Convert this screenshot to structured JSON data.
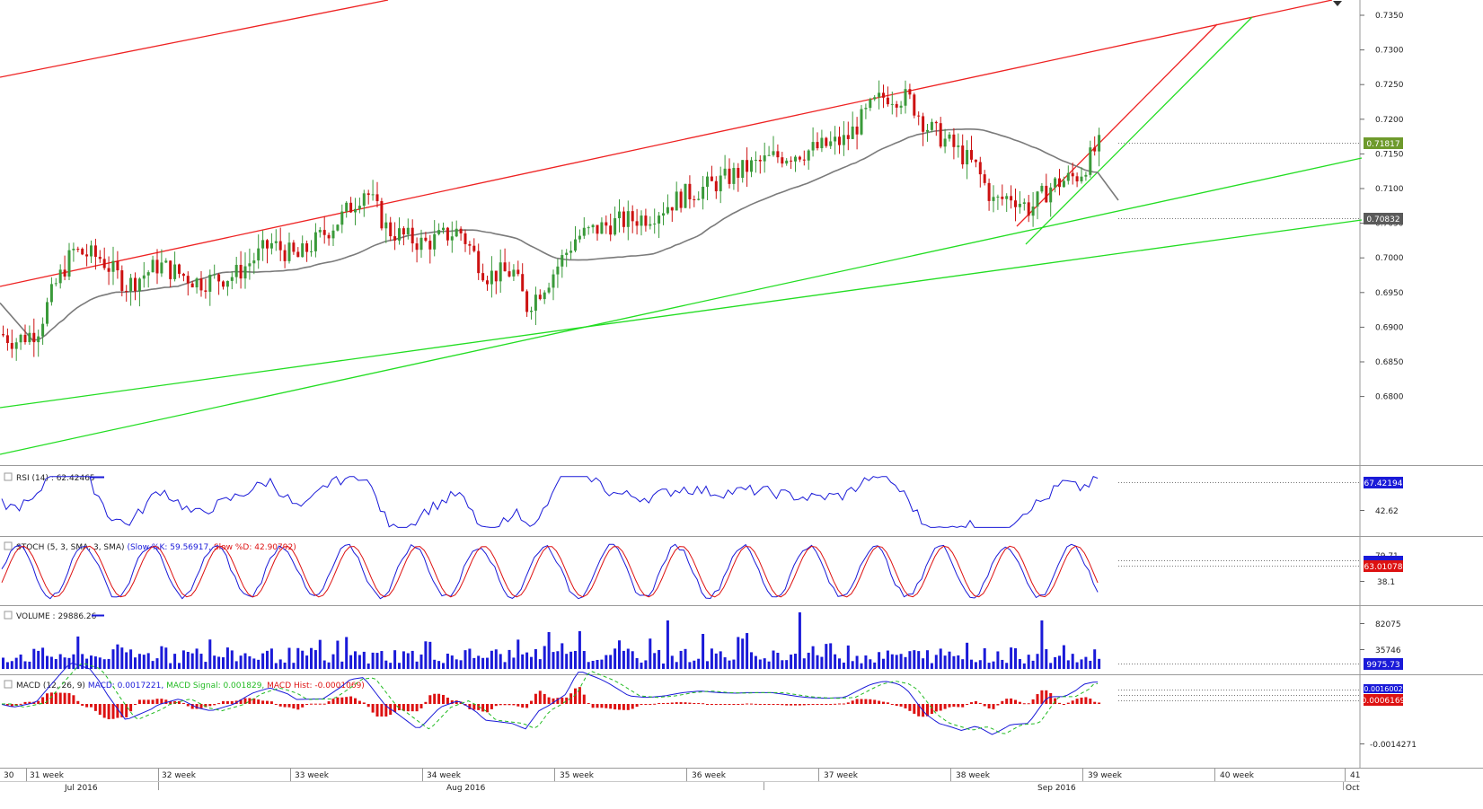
{
  "chart_data": {
    "type": "candlestick",
    "main": {
      "price_ticks": [
        "0.7350",
        "0.7300",
        "0.7250",
        "0.7200",
        "0.7150",
        "0.7100",
        "0.7050",
        "0.7000",
        "0.6950",
        "0.6900",
        "0.6850",
        "0.6800"
      ],
      "price_min": 0.677,
      "price_max": 0.737,
      "last_price": "0.71817",
      "ma_value": "0.70832",
      "ohlc_start": {
        "open": 0.689,
        "close": 0.688
      },
      "colors": {
        "up": "#3a9a3a",
        "down": "#cc1111",
        "ma": "#7a7a7a",
        "channel": "#ee2222",
        "trend": "#22dd22"
      }
    },
    "rsi": {
      "legend": "RSI (14) : 62.42465",
      "last": "67.42194",
      "tick": "42.62"
    },
    "stoch": {
      "legend_prefix": "STOCH (5, 3, SMA, 3, SMA)",
      "legend_k": "(Slow %K: 59.56917,",
      "legend_d": "Slow %D: 42.90792)",
      "tick_high": "79.71",
      "tick_low": "38.1",
      "last_k": "63.01078",
      "last_d": "63.01078"
    },
    "volume": {
      "legend": "VOLUME : 29886.26",
      "ticks": [
        "82075",
        "35746"
      ],
      "last": "9975.73"
    },
    "macd": {
      "legend_prefix": "MACD (12, 26, 9)",
      "legend_macd": "MACD: 0.0017221,",
      "legend_signal": "MACD Signal: 0.001829,",
      "legend_hist": "MACD Hist: -0.0001069)",
      "tick": "-0.0014271",
      "last_macd": "0.0016002",
      "last_hist": "0.0006169"
    },
    "x_axis": {
      "weeks": [
        {
          "label": "30"
        },
        {
          "label": "31 week"
        },
        {
          "label": "32 week"
        },
        {
          "label": "33 week"
        },
        {
          "label": "34 week"
        },
        {
          "label": "35 week"
        },
        {
          "label": "36 week"
        },
        {
          "label": "37 week"
        },
        {
          "label": "38 week"
        },
        {
          "label": "39 week"
        },
        {
          "label": "40 week"
        },
        {
          "label": "41"
        }
      ],
      "months": [
        {
          "label": "Jul 2016"
        },
        {
          "label": "Aug 2016"
        },
        {
          "label": "Sep 2016"
        },
        {
          "label": "Oct"
        }
      ]
    }
  }
}
